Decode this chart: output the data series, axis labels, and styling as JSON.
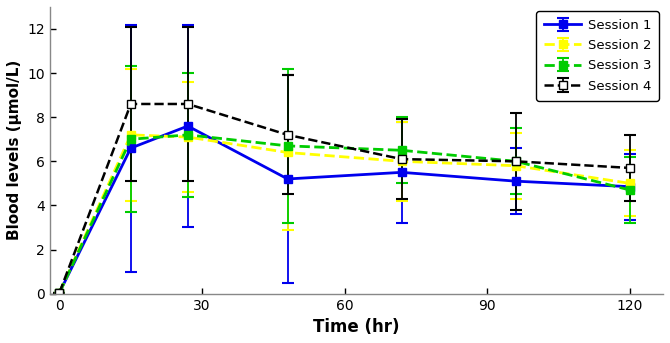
{
  "time": [
    0,
    15,
    27,
    48,
    72,
    96,
    120
  ],
  "session1": {
    "y": [
      0.05,
      6.6,
      7.6,
      5.2,
      5.5,
      5.1,
      4.85
    ],
    "yerr": [
      0.0,
      5.6,
      4.6,
      4.7,
      2.3,
      1.5,
      1.5
    ],
    "color": "#0000EE",
    "linestyle": "-",
    "marker": "s",
    "markerfacecolor": "#0000EE",
    "markeredgecolor": "#0000EE",
    "label": "Session 1",
    "linewidth": 2.0
  },
  "session2": {
    "y": [
      0.05,
      7.2,
      7.1,
      6.4,
      6.0,
      5.8,
      5.0
    ],
    "yerr": [
      0.0,
      3.0,
      2.5,
      3.5,
      1.8,
      1.5,
      1.5
    ],
    "color": "#FFFF00",
    "linestyle": "--",
    "marker": "s",
    "markerfacecolor": "#FFFF00",
    "markeredgecolor": "#FFFF00",
    "label": "Session 2",
    "linewidth": 2.0
  },
  "session3": {
    "y": [
      0.05,
      7.0,
      7.2,
      6.7,
      6.5,
      6.0,
      4.7
    ],
    "yerr": [
      0.0,
      3.3,
      2.8,
      3.5,
      1.5,
      1.5,
      1.5
    ],
    "color": "#00CC00",
    "linestyle": "--",
    "marker": "s",
    "markerfacecolor": "#00CC00",
    "markeredgecolor": "#00CC00",
    "label": "Session 3",
    "linewidth": 2.0
  },
  "session4": {
    "y": [
      0.05,
      8.6,
      8.6,
      7.2,
      6.1,
      6.0,
      5.7
    ],
    "yerr": [
      0.0,
      3.5,
      3.5,
      2.7,
      1.8,
      2.2,
      1.5
    ],
    "color": "#000000",
    "linestyle": "--",
    "marker": "s",
    "markerfacecolor": "#FFFFFF",
    "markeredgecolor": "#000000",
    "label": "Session 4",
    "linewidth": 1.8
  },
  "xlabel": "Time (hr)",
  "ylabel": "Blood levels (μmol/L)",
  "xlim": [
    -2,
    127
  ],
  "ylim": [
    0,
    13
  ],
  "xticks": [
    0,
    30,
    60,
    90,
    120
  ],
  "yticks": [
    0,
    2,
    4,
    6,
    8,
    10,
    12
  ],
  "background_color": "#FFFFFF",
  "figsize": [
    6.7,
    3.43
  ],
  "dpi": 100
}
